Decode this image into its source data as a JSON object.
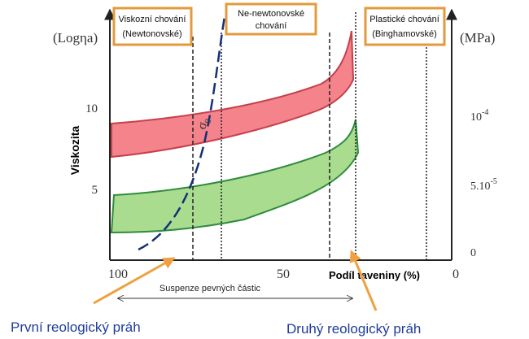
{
  "boxes": [
    {
      "lines": [
        "Viskozní chování",
        "(Newtonovské)"
      ]
    },
    {
      "lines": [
        "Ne-newtonovské",
        "chování"
      ]
    },
    {
      "lines": [
        "Plastické chování",
        "(Binghamovské)"
      ]
    }
  ],
  "left_axis": {
    "unit": "(Logηa)",
    "label": "Viskozita",
    "ticks": [
      "10",
      "5"
    ]
  },
  "right_axis": {
    "unit": "(MPa)",
    "ticks": [
      {
        "base": "10",
        "sup": "-4"
      },
      {
        "base": "5.10",
        "sup": "-5"
      },
      {
        "base": "0"
      }
    ]
  },
  "bottom_axis": {
    "label": "Podíl taveniny (%)",
    "ticks": [
      "100",
      "50",
      "0"
    ]
  },
  "curve_label": {
    "base": "σ",
    "sub": "0"
  },
  "range_label": "Suspenze pevných částic",
  "thresholds": [
    "První reologický práh",
    "Druhý reologický práh"
  ]
}
